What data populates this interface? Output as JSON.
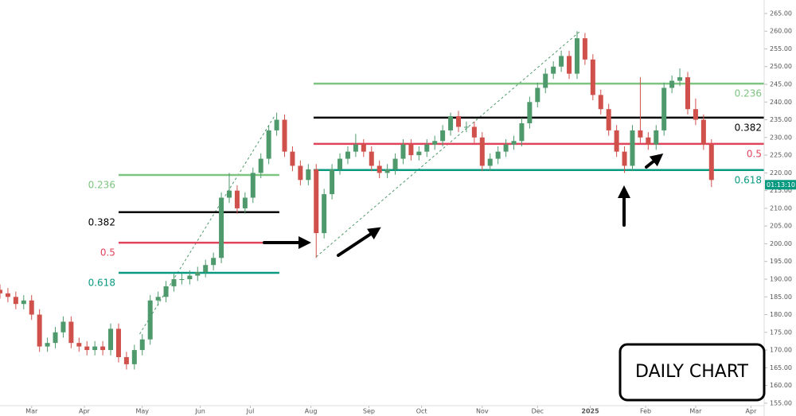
{
  "chart_data": {
    "type": "candlestick",
    "up_color": "#4f9a6c",
    "down_color": "#d0514b",
    "x": [
      -12,
      -9,
      -6,
      -3,
      0,
      3,
      6,
      9,
      12,
      15,
      18,
      21,
      24,
      27,
      30,
      33,
      36,
      39,
      42,
      45,
      48,
      51,
      54,
      57,
      60,
      63,
      66,
      69,
      72,
      75,
      78,
      81,
      84,
      87,
      90,
      93,
      96,
      99,
      102,
      105,
      108,
      111,
      114,
      117,
      120,
      123,
      126,
      129,
      132,
      135,
      138,
      141,
      144,
      147,
      150,
      153,
      156,
      159,
      162,
      165,
      168,
      171,
      174,
      177,
      180,
      183,
      186,
      189,
      192,
      195,
      198,
      201,
      204,
      207,
      210,
      213,
      216,
      219,
      222,
      225,
      228,
      231,
      234,
      237,
      240,
      243,
      246,
      249,
      252,
      255,
      258
    ],
    "ohlc": [
      [
        187,
        188.5,
        184.5,
        186
      ],
      [
        186,
        187.5,
        183.5,
        185
      ],
      [
        185,
        186.5,
        181.5,
        183
      ],
      [
        183,
        185.5,
        181.5,
        184
      ],
      [
        184,
        185.5,
        178.5,
        180
      ],
      [
        180,
        181.5,
        169.5,
        171
      ],
      [
        171,
        173.5,
        169.5,
        172
      ],
      [
        172,
        176.5,
        170.5,
        175
      ],
      [
        175,
        179.5,
        173.5,
        178
      ],
      [
        178,
        179.5,
        170.5,
        172
      ],
      [
        172,
        173.5,
        169.5,
        171
      ],
      [
        171,
        172.5,
        168.5,
        170
      ],
      [
        170,
        172.5,
        168.5,
        171
      ],
      [
        171,
        172.5,
        168.5,
        170
      ],
      [
        170,
        177.5,
        168.5,
        176
      ],
      [
        176,
        177.5,
        166.5,
        168
      ],
      [
        168,
        169.5,
        164.5,
        166
      ],
      [
        166,
        171.5,
        164.5,
        170
      ],
      [
        170,
        174.5,
        168.5,
        173
      ],
      [
        173,
        185.5,
        171.5,
        184
      ],
      [
        184,
        186.5,
        182.5,
        185
      ],
      [
        185,
        189.5,
        183.5,
        188
      ],
      [
        188,
        191.5,
        186.5,
        190
      ],
      [
        190,
        191.5,
        188.5,
        190
      ],
      [
        190,
        192.5,
        188.5,
        191
      ],
      [
        191,
        193.5,
        189.5,
        192
      ],
      [
        192,
        195.5,
        190.5,
        194
      ],
      [
        194,
        197.5,
        192.5,
        196
      ],
      [
        196,
        214.5,
        194.5,
        213
      ],
      [
        213,
        220,
        211.5,
        215
      ],
      [
        215,
        216.5,
        208.5,
        210
      ],
      [
        210,
        214.5,
        208.5,
        213
      ],
      [
        213,
        221.5,
        211.5,
        220
      ],
      [
        220,
        225.5,
        218.5,
        224
      ],
      [
        224,
        233.5,
        222.5,
        232
      ],
      [
        232,
        237,
        230.5,
        235
      ],
      [
        235,
        236.5,
        224.5,
        226
      ],
      [
        226,
        227.5,
        220.5,
        222
      ],
      [
        222,
        223.5,
        216.5,
        218
      ],
      [
        218,
        222.5,
        216.5,
        221
      ],
      [
        221,
        222.5,
        196,
        203
      ],
      [
        203,
        215.5,
        201.5,
        214
      ],
      [
        214,
        222.5,
        212.5,
        221
      ],
      [
        221,
        225.5,
        219.5,
        224
      ],
      [
        224,
        227.5,
        222.5,
        226
      ],
      [
        226,
        231,
        224.5,
        228
      ],
      [
        228,
        229.5,
        224.5,
        226
      ],
      [
        226,
        227.5,
        220.5,
        222
      ],
      [
        222,
        223.5,
        218.5,
        220
      ],
      [
        220,
        222.5,
        218.5,
        221
      ],
      [
        221,
        225.5,
        219.5,
        224
      ],
      [
        224,
        229.5,
        222.5,
        228
      ],
      [
        228,
        229.5,
        223.5,
        225
      ],
      [
        225,
        227.5,
        223.5,
        226
      ],
      [
        226,
        229.5,
        224.5,
        228
      ],
      [
        228,
        230.5,
        226.5,
        229
      ],
      [
        229,
        233.5,
        227.5,
        232
      ],
      [
        232,
        237,
        230.5,
        236
      ],
      [
        236,
        237.5,
        231.5,
        233
      ],
      [
        233,
        234.5,
        231.5,
        233
      ],
      [
        233,
        234.5,
        228.5,
        230
      ],
      [
        230,
        231.5,
        220.5,
        222
      ],
      [
        222,
        225.5,
        220.5,
        224
      ],
      [
        224,
        227.5,
        222.5,
        226
      ],
      [
        226,
        229.5,
        224.5,
        228
      ],
      [
        228,
        230.5,
        226.5,
        229
      ],
      [
        229,
        235.5,
        227.5,
        234
      ],
      [
        234,
        241.5,
        232.5,
        240
      ],
      [
        240,
        245.5,
        238.5,
        244
      ],
      [
        244,
        249.5,
        242.5,
        248
      ],
      [
        248,
        251.5,
        246.5,
        250
      ],
      [
        250,
        254.5,
        248.5,
        253
      ],
      [
        253,
        254.5,
        246.5,
        248
      ],
      [
        248,
        260,
        246.5,
        258
      ],
      [
        258,
        259.5,
        250.5,
        252
      ],
      [
        252,
        253.5,
        240.5,
        242
      ],
      [
        242,
        243.5,
        236.5,
        238
      ],
      [
        238,
        239.5,
        230.5,
        232
      ],
      [
        232,
        233.5,
        224.5,
        226
      ],
      [
        226,
        227.5,
        220,
        222
      ],
      [
        222,
        233.5,
        220.5,
        232
      ],
      [
        232,
        247,
        228.5,
        230
      ],
      [
        230,
        231.5,
        226.5,
        228
      ],
      [
        228,
        233.5,
        226.5,
        232
      ],
      [
        232,
        245.5,
        230.5,
        244
      ],
      [
        244,
        247.5,
        242.5,
        246
      ],
      [
        246,
        249.5,
        244.5,
        247
      ],
      [
        247,
        248.5,
        236.5,
        238
      ],
      [
        238,
        241,
        233.5,
        235
      ],
      [
        235,
        236.5,
        226.5,
        228
      ],
      [
        228,
        229.5,
        216,
        218
      ]
    ],
    "xlim": [
      -12,
      278
    ],
    "xticks": [
      {
        "value": 0,
        "label": "Mar"
      },
      {
        "value": 20,
        "label": "Apr"
      },
      {
        "value": 42,
        "label": "May"
      },
      {
        "value": 64,
        "label": "Jun"
      },
      {
        "value": 83,
        "label": "Jul"
      },
      {
        "value": 106,
        "label": "Aug"
      },
      {
        "value": 128,
        "label": "Sep"
      },
      {
        "value": 148,
        "label": "Oct"
      },
      {
        "value": 171,
        "label": "Nov"
      },
      {
        "value": 192,
        "label": "Dec"
      },
      {
        "value": 212,
        "label": "2025"
      },
      {
        "value": 233,
        "label": "Feb"
      },
      {
        "value": 252,
        "label": "Mar"
      },
      {
        "value": 273,
        "label": "Apr"
      }
    ],
    "ylim": [
      154.3,
      268.8
    ],
    "yticks": [
      {
        "value": 155,
        "label": "155.00"
      },
      {
        "value": 160,
        "label": "160.00"
      },
      {
        "value": 165,
        "label": "165.00"
      },
      {
        "value": 170,
        "label": "170.00"
      },
      {
        "value": 175,
        "label": "175.00"
      },
      {
        "value": 180,
        "label": "180.00"
      },
      {
        "value": 185,
        "label": "185.00"
      },
      {
        "value": 190,
        "label": "190.00"
      },
      {
        "value": 195,
        "label": "195.00"
      },
      {
        "value": 200,
        "label": "200.00"
      },
      {
        "value": 205,
        "label": "205.00"
      },
      {
        "value": 210,
        "label": "210.00"
      },
      {
        "value": 215,
        "label": "215.00"
      },
      {
        "value": 220,
        "label": "220.00"
      },
      {
        "value": 225,
        "label": "225.00"
      },
      {
        "value": 230,
        "label": "230.00"
      },
      {
        "value": 235,
        "label": "235.00"
      },
      {
        "value": 240,
        "label": "240.00"
      },
      {
        "value": 245,
        "label": "245.00"
      },
      {
        "value": 250,
        "label": "250.00"
      },
      {
        "value": 255,
        "label": "255.00"
      },
      {
        "value": 260,
        "label": "260.00"
      },
      {
        "value": 265,
        "label": "265.00"
      }
    ],
    "fibonacci": [
      {
        "start": 33,
        "end": 94,
        "levels": [
          {
            "ratio": "0.236",
            "price": 219.4,
            "color": "#7cc47f"
          },
          {
            "ratio": "0.382",
            "price": 208.9,
            "color": "#000000"
          },
          {
            "ratio": "0.5",
            "price": 200.3,
            "color": "#e0445b"
          },
          {
            "ratio": "0.618",
            "price": 191.8,
            "color": "#089981"
          }
        ]
      },
      {
        "start": 107,
        "end": 279,
        "levels": [
          {
            "ratio": "0.236",
            "price": 245.2,
            "color": "#7cc47f"
          },
          {
            "ratio": "0.382",
            "price": 235.6,
            "color": "#000000"
          },
          {
            "ratio": "0.5",
            "price": 228.2,
            "color": "#e0445b"
          },
          {
            "ratio": "0.618",
            "price": 220.8,
            "color": "#089981"
          }
        ]
      }
    ],
    "trendlines": [
      {
        "start": [
          41,
          174.5
        ],
        "end": [
          92,
          235.8
        ],
        "color": "#4f9a6c"
      },
      {
        "start": [
          108,
          196.3
        ],
        "end": [
          208.5,
          260.2
        ],
        "color": "#4f9a6c"
      }
    ],
    "countdown": "01:13:10",
    "countdown_color": "#089981",
    "annotation": "DAILY CHART"
  }
}
